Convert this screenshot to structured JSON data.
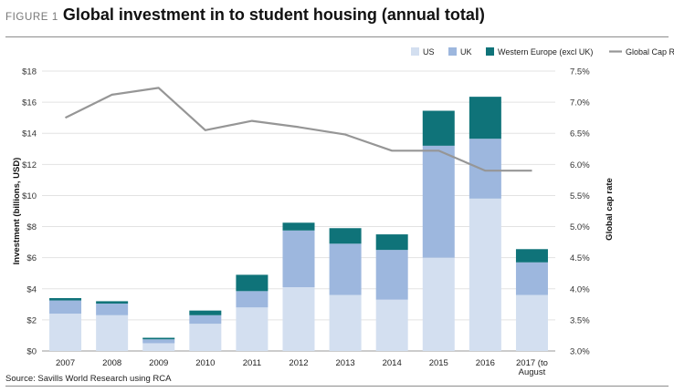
{
  "figure": {
    "label": "FIGURE 1",
    "title": "Global investment in to student housing (annual total)",
    "source": "Source: Savills World Research using RCA"
  },
  "chart_data": {
    "type": "bar",
    "stacked": true,
    "categories": [
      "2007",
      "2008",
      "2009",
      "2010",
      "2011",
      "2012",
      "2013",
      "2014",
      "2015",
      "2016",
      "2017 (to August"
    ],
    "series": [
      {
        "name": "US",
        "color": "#d3dff0",
        "values": [
          2.4,
          2.3,
          0.5,
          1.75,
          2.8,
          4.1,
          3.6,
          3.3,
          6.0,
          9.8,
          3.6
        ]
      },
      {
        "name": "UK",
        "color": "#9db7de",
        "values": [
          0.85,
          0.75,
          0.25,
          0.55,
          1.05,
          3.65,
          3.3,
          3.2,
          7.2,
          3.85,
          2.1
        ]
      },
      {
        "name": "Western Europe (excl UK)",
        "color": "#0f7379",
        "values": [
          0.15,
          0.15,
          0.1,
          0.3,
          1.05,
          0.5,
          1.0,
          1.0,
          2.25,
          2.7,
          0.85
        ]
      }
    ],
    "line_series": {
      "name": "Global Cap Rate",
      "color": "#969696",
      "axis": "right",
      "values": [
        6.75,
        7.12,
        7.23,
        6.55,
        6.7,
        6.6,
        6.48,
        6.22,
        6.22,
        5.9,
        5.9
      ]
    },
    "ylabel": "Investment (billions, USD)",
    "ylabel_right": "Global cap rate",
    "ylim": [
      0,
      18
    ],
    "yticks": [
      "$0",
      "$2",
      "$4",
      "$6",
      "$8",
      "$10",
      "$12",
      "$14",
      "$16",
      "$18"
    ],
    "ylim_right": [
      3.0,
      7.5
    ],
    "yticks_right": [
      "3.0%",
      "3.5%",
      "4.0%",
      "4.5%",
      "5.0%",
      "5.5%",
      "6.0%",
      "6.5%",
      "7.0%",
      "7.5%"
    ],
    "grid": true,
    "legend": "top-right"
  }
}
